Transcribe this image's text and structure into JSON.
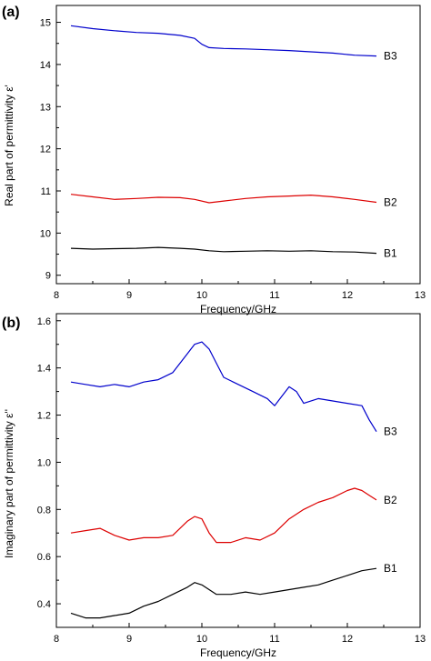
{
  "chart_data": [
    {
      "type": "line",
      "panel_label": "(a)",
      "xlabel": "Frequency/GHz",
      "ylabel": "Real part of permittivity ε'",
      "xlim": [
        8,
        13
      ],
      "ylim": [
        8.8,
        15.4
      ],
      "x_ticks": [
        8,
        9,
        10,
        11,
        12,
        13
      ],
      "x_tick_labels": [
        "8",
        "9",
        "10",
        "11",
        "12",
        "13"
      ],
      "y_ticks": [
        9,
        10,
        11,
        12,
        13,
        14,
        15
      ],
      "y_tick_labels": [
        "9",
        "10",
        "11",
        "12",
        "13",
        "14",
        "15"
      ],
      "series": [
        {
          "name": "B3",
          "color": "#0000cc",
          "x": [
            8.2,
            8.5,
            8.8,
            9.1,
            9.4,
            9.7,
            9.9,
            10.0,
            10.1,
            10.3,
            10.6,
            10.9,
            11.2,
            11.5,
            11.8,
            12.1,
            12.4
          ],
          "y": [
            14.92,
            14.85,
            14.8,
            14.76,
            14.74,
            14.69,
            14.62,
            14.48,
            14.4,
            14.38,
            14.37,
            14.35,
            14.33,
            14.3,
            14.27,
            14.22,
            14.2
          ]
        },
        {
          "name": "B2",
          "color": "#dd0000",
          "x": [
            8.2,
            8.5,
            8.8,
            9.1,
            9.4,
            9.7,
            9.9,
            10.1,
            10.3,
            10.6,
            10.9,
            11.2,
            11.5,
            11.8,
            12.1,
            12.4
          ],
          "y": [
            10.92,
            10.86,
            10.8,
            10.82,
            10.85,
            10.84,
            10.8,
            10.72,
            10.76,
            10.82,
            10.86,
            10.88,
            10.9,
            10.86,
            10.8,
            10.73
          ]
        },
        {
          "name": "B1",
          "color": "#000000",
          "x": [
            8.2,
            8.5,
            8.8,
            9.1,
            9.4,
            9.7,
            9.9,
            10.1,
            10.3,
            10.6,
            10.9,
            11.2,
            11.5,
            11.8,
            12.1,
            12.4
          ],
          "y": [
            9.64,
            9.62,
            9.63,
            9.64,
            9.66,
            9.64,
            9.62,
            9.58,
            9.56,
            9.57,
            9.58,
            9.57,
            9.58,
            9.56,
            9.55,
            9.52
          ]
        }
      ]
    },
    {
      "type": "line",
      "panel_label": "(b)",
      "xlabel": "Frequency/GHz",
      "ylabel": "Imaginary part of permittivity ε''",
      "xlim": [
        8,
        13
      ],
      "ylim": [
        0.3,
        1.63
      ],
      "x_ticks": [
        8,
        9,
        10,
        11,
        12,
        13
      ],
      "x_tick_labels": [
        "8",
        "9",
        "10",
        "11",
        "12",
        "13"
      ],
      "y_ticks": [
        0.4,
        0.6,
        0.8,
        1.0,
        1.2,
        1.4,
        1.6
      ],
      "y_tick_labels": [
        "0.4",
        "0.6",
        "0.8",
        "1.0",
        "1.2",
        "1.4",
        "1.6"
      ],
      "series": [
        {
          "name": "B3",
          "color": "#0000cc",
          "x": [
            8.2,
            8.4,
            8.6,
            8.8,
            9.0,
            9.2,
            9.4,
            9.6,
            9.8,
            9.9,
            10.0,
            10.1,
            10.2,
            10.3,
            10.5,
            10.7,
            10.9,
            11.0,
            11.1,
            11.2,
            11.3,
            11.4,
            11.6,
            11.8,
            12.0,
            12.2,
            12.3,
            12.4
          ],
          "y": [
            1.34,
            1.33,
            1.32,
            1.33,
            1.32,
            1.34,
            1.35,
            1.38,
            1.46,
            1.5,
            1.51,
            1.48,
            1.42,
            1.36,
            1.33,
            1.3,
            1.27,
            1.24,
            1.28,
            1.32,
            1.3,
            1.25,
            1.27,
            1.26,
            1.25,
            1.24,
            1.18,
            1.13
          ]
        },
        {
          "name": "B2",
          "color": "#dd0000",
          "x": [
            8.2,
            8.4,
            8.6,
            8.8,
            9.0,
            9.2,
            9.4,
            9.6,
            9.8,
            9.9,
            10.0,
            10.1,
            10.2,
            10.4,
            10.6,
            10.8,
            11.0,
            11.2,
            11.4,
            11.6,
            11.8,
            12.0,
            12.1,
            12.2,
            12.3,
            12.4
          ],
          "y": [
            0.7,
            0.71,
            0.72,
            0.69,
            0.67,
            0.68,
            0.68,
            0.69,
            0.75,
            0.77,
            0.76,
            0.7,
            0.66,
            0.66,
            0.68,
            0.67,
            0.7,
            0.76,
            0.8,
            0.83,
            0.85,
            0.88,
            0.89,
            0.88,
            0.86,
            0.84
          ]
        },
        {
          "name": "B1",
          "color": "#000000",
          "x": [
            8.2,
            8.4,
            8.6,
            8.8,
            9.0,
            9.2,
            9.4,
            9.6,
            9.8,
            9.9,
            10.0,
            10.1,
            10.2,
            10.4,
            10.6,
            10.8,
            11.0,
            11.2,
            11.4,
            11.6,
            11.8,
            12.0,
            12.2,
            12.4
          ],
          "y": [
            0.36,
            0.34,
            0.34,
            0.35,
            0.36,
            0.39,
            0.41,
            0.44,
            0.47,
            0.49,
            0.48,
            0.46,
            0.44,
            0.44,
            0.45,
            0.44,
            0.45,
            0.46,
            0.47,
            0.48,
            0.5,
            0.52,
            0.54,
            0.55
          ]
        }
      ]
    }
  ]
}
